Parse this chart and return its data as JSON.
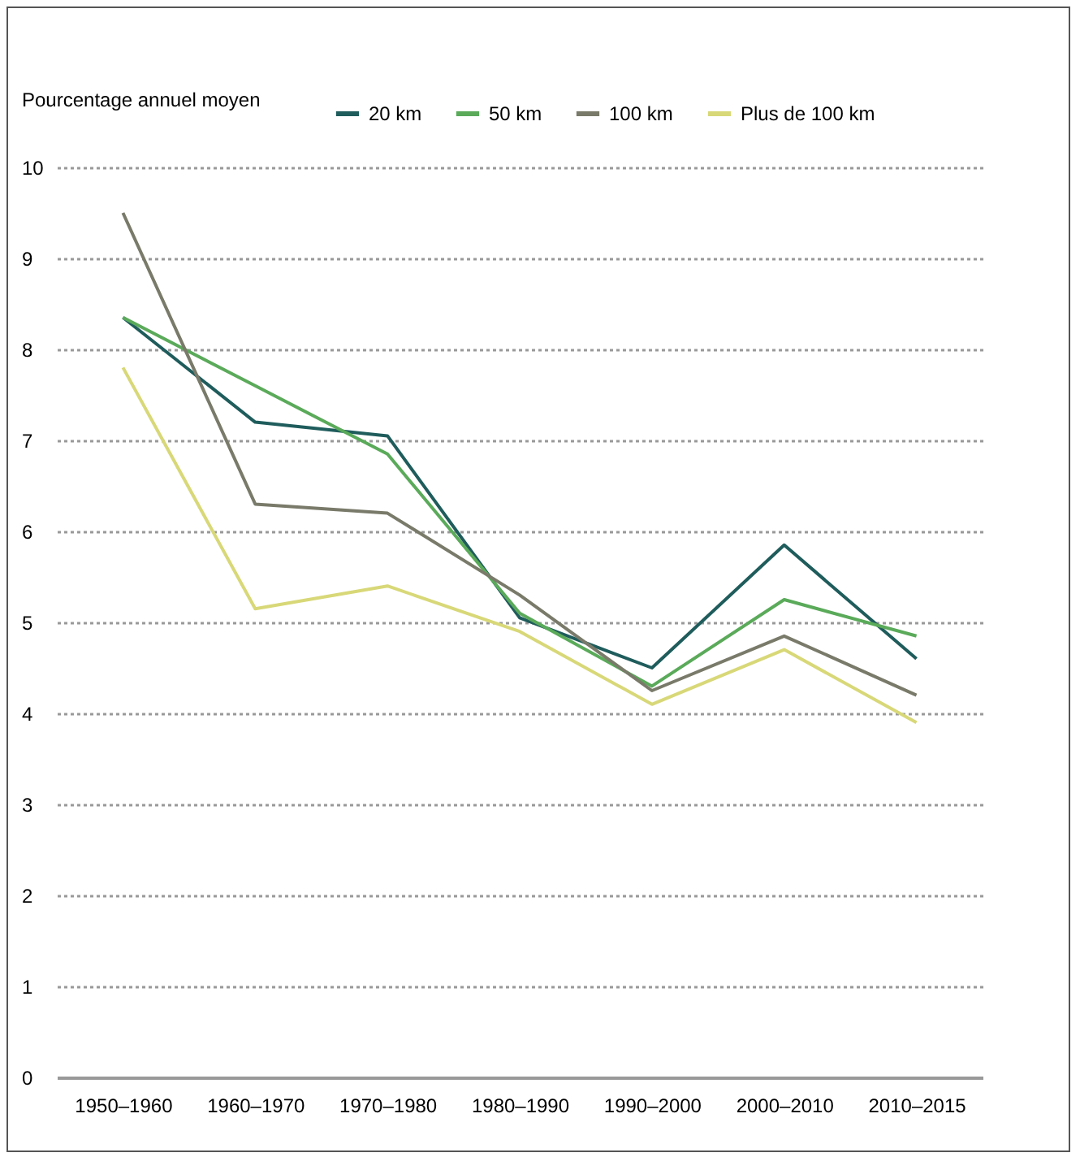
{
  "chart_data": {
    "type": "line",
    "ylabel": "Pourcentage annuel moyen",
    "categories": [
      "1950–1960",
      "1960–1970",
      "1970–1980",
      "1980–1990",
      "1990–2000",
      "2000–2010",
      "2010–2015"
    ],
    "series": [
      {
        "name": "20 km",
        "color": "#1f5c5c",
        "values": [
          8.35,
          7.2,
          7.05,
          5.05,
          4.5,
          5.85,
          4.6
        ]
      },
      {
        "name": "50 km",
        "color": "#5aaa5a",
        "values": [
          8.35,
          7.6,
          6.85,
          5.1,
          4.3,
          5.25,
          4.85
        ]
      },
      {
        "name": "100 km",
        "color": "#7a7a6a",
        "values": [
          9.5,
          6.3,
          6.2,
          5.3,
          4.25,
          4.85,
          4.2
        ]
      },
      {
        "name": "Plus de 100 km",
        "color": "#d8d878",
        "values": [
          7.8,
          5.15,
          5.4,
          4.9,
          4.1,
          4.7,
          3.9
        ]
      }
    ],
    "ylim": [
      0,
      10
    ],
    "yticks": [
      0,
      1,
      2,
      3,
      4,
      5,
      6,
      7,
      8,
      9,
      10
    ],
    "grid": "y",
    "legend": "top",
    "marker": "none",
    "line_style": "solid"
  }
}
